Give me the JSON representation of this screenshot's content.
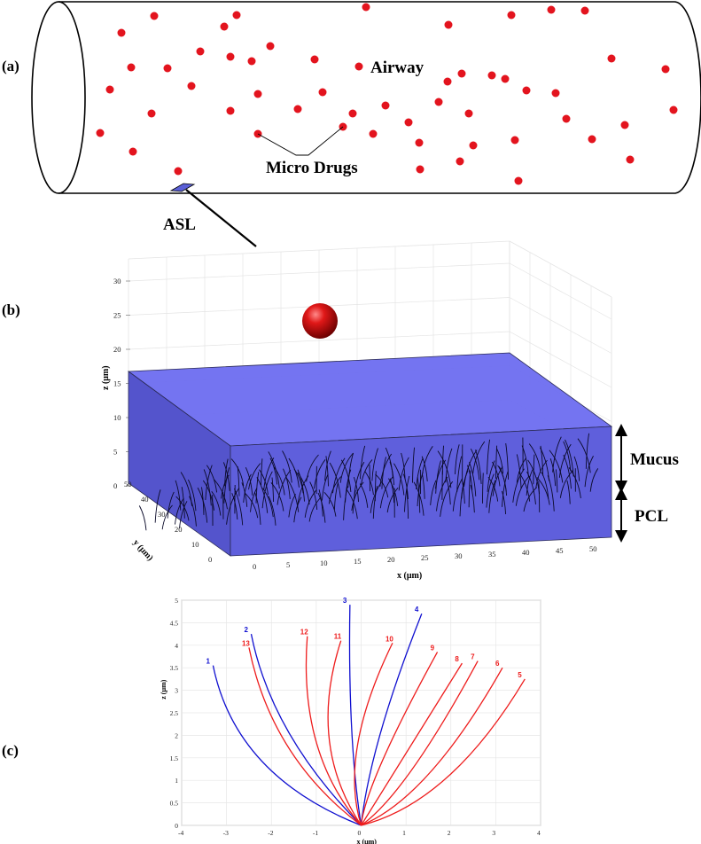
{
  "panels": {
    "a": {
      "label": "(a)",
      "airway_label": "Airway",
      "drugs_label": "Micro Drugs",
      "asl_label": "ASL"
    },
    "b": {
      "label": "(b)",
      "mucus_label": "Mucus",
      "pcl_label": "PCL",
      "z_axis_label": "z (μm)",
      "y_axis_label": "y (μm)",
      "x_axis_label": "x (μm)",
      "z_ticks": [
        "0",
        "5",
        "10",
        "15",
        "20",
        "25",
        "30"
      ],
      "y_ticks": [
        "0",
        "10",
        "20",
        "30",
        "40",
        "50"
      ],
      "x_ticks": [
        "0",
        "5",
        "10",
        "15",
        "20",
        "25",
        "30",
        "35",
        "40",
        "45",
        "50"
      ]
    },
    "c": {
      "label": "(c)"
    }
  },
  "colors": {
    "drug_red": "#e3141e",
    "asl_blue": "#5a5fd6",
    "cilia_blue": "#1010d0",
    "cilia_red": "#ee1c1c"
  },
  "chart_data": {
    "type": "line",
    "xlabel": "x (μm)",
    "ylabel": "z (μm)",
    "xlim": [
      -4,
      4
    ],
    "ylim": [
      0,
      5
    ],
    "x_ticks": [
      "-4",
      "-3",
      "-2",
      "-1",
      "0",
      "1",
      "2",
      "3",
      "4"
    ],
    "y_ticks": [
      "0",
      "0.5",
      "1",
      "1.5",
      "2",
      "2.5",
      "3",
      "3.5",
      "4",
      "4.5",
      "5"
    ],
    "grid": true,
    "series": [
      {
        "name": "1",
        "color": "blue",
        "tip": [
          -3.3,
          3.55
        ],
        "mid": [
          -2.8,
          1.1
        ]
      },
      {
        "name": "2",
        "color": "blue",
        "tip": [
          -2.45,
          4.25
        ],
        "mid": [
          -2.0,
          2.0
        ]
      },
      {
        "name": "3",
        "color": "blue",
        "tip": [
          -0.25,
          4.9
        ],
        "mid": [
          -0.3,
          1.9
        ]
      },
      {
        "name": "4",
        "color": "blue",
        "tip": [
          1.35,
          4.7
        ],
        "mid": [
          0.2,
          1.8
        ]
      },
      {
        "name": "5",
        "color": "red",
        "tip": [
          3.65,
          3.25
        ],
        "mid": [
          2.0,
          0.5
        ]
      },
      {
        "name": "6",
        "color": "red",
        "tip": [
          3.15,
          3.5
        ],
        "mid": [
          1.5,
          0.6
        ]
      },
      {
        "name": "7",
        "color": "red",
        "tip": [
          2.6,
          3.65
        ],
        "mid": [
          1.0,
          0.7
        ]
      },
      {
        "name": "8",
        "color": "red",
        "tip": [
          2.25,
          3.6
        ],
        "mid": [
          0.5,
          0.8
        ]
      },
      {
        "name": "9",
        "color": "red",
        "tip": [
          1.7,
          3.85
        ],
        "mid": [
          0.1,
          0.95
        ]
      },
      {
        "name": "10",
        "color": "red",
        "tip": [
          0.7,
          4.05
        ],
        "mid": [
          -0.5,
          1.6
        ]
      },
      {
        "name": "11",
        "color": "red",
        "tip": [
          -0.45,
          4.1
        ],
        "mid": [
          -1.2,
          1.8
        ]
      },
      {
        "name": "12",
        "color": "red",
        "tip": [
          -1.2,
          4.2
        ],
        "mid": [
          -1.4,
          1.6
        ]
      },
      {
        "name": "13",
        "color": "red",
        "tip": [
          -2.5,
          3.95
        ],
        "mid": [
          -2.0,
          1.5
        ]
      }
    ]
  }
}
